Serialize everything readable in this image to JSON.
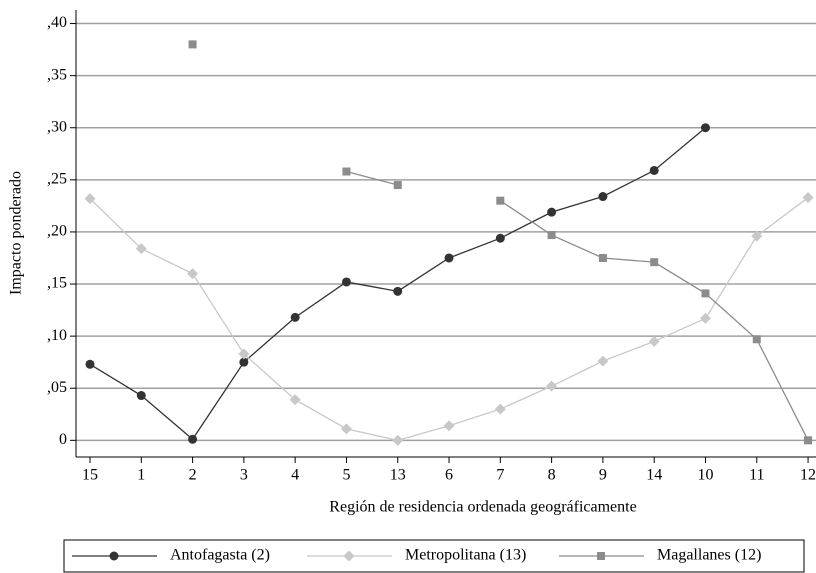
{
  "chart_data": {
    "type": "line",
    "x_label": "Región de residencia ordenada geográficamente",
    "y_label": "Impacto ponderado",
    "categories": [
      "15",
      "1",
      "2",
      "3",
      "4",
      "5",
      "13",
      "6",
      "7",
      "8",
      "9",
      "14",
      "10",
      "11",
      "12"
    ],
    "series": [
      {
        "name": "Antofagasta (2)",
        "color": "#333333",
        "marker": "circle",
        "values": [
          0.073,
          0.043,
          0.001,
          0.075,
          0.118,
          0.152,
          0.143,
          0.175,
          0.194,
          0.219,
          0.234,
          0.259,
          0.3,
          null,
          null
        ]
      },
      {
        "name": "Metropolitana (13)",
        "color": "#c8c8c8",
        "marker": "diamond",
        "values": [
          0.232,
          0.184,
          0.16,
          0.083,
          0.039,
          0.011,
          0.0,
          0.014,
          0.03,
          0.052,
          0.076,
          0.095,
          0.117,
          0.196,
          0.233
        ]
      },
      {
        "name": "Magallanes (12)",
        "color": "#8c8c8c",
        "marker": "square",
        "values": [
          null,
          null,
          0.38,
          null,
          null,
          0.258,
          0.245,
          null,
          0.23,
          0.197,
          0.175,
          0.171,
          0.141,
          0.097,
          0.0
        ]
      }
    ],
    "ylim": [
      -0.016,
      0.413
    ],
    "yticks": [
      0,
      {
        "value": 0.05,
        "label": ",05"
      },
      {
        "value": 0.1,
        "label": ",10"
      },
      {
        "value": 0.15,
        "label": ",15"
      },
      {
        "value": 0.2,
        "label": ",20"
      },
      {
        "value": 0.25,
        "label": ",25"
      },
      {
        "value": 0.3,
        "label": ",30"
      },
      {
        "value": 0.35,
        "label": ",35"
      },
      {
        "value": 0.4,
        "label": ",40"
      }
    ],
    "grid": true,
    "legend": "bottom"
  }
}
